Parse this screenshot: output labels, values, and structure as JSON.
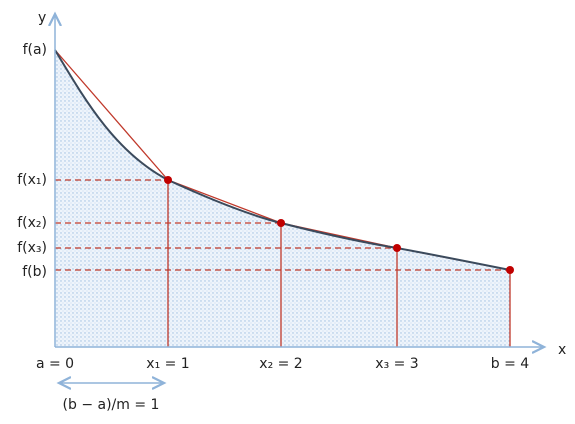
{
  "axes": {
    "y_label": "y",
    "x_label": "x"
  },
  "y_labels": [
    "f(a)",
    "f(x₁)",
    "f(x₂)",
    "f(x₃)",
    "f(b)"
  ],
  "x_labels": [
    "a = 0",
    "x₁ = 1",
    "x₂ = 2",
    "x₃ = 3",
    "b = 4"
  ],
  "step_label": "(b − a)/m = 1"
}
